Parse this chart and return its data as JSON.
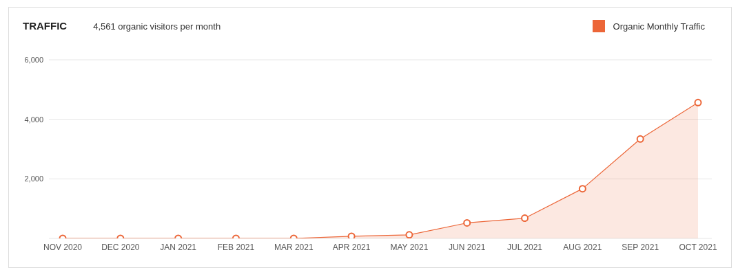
{
  "chart_data": {
    "type": "area",
    "title": "TRAFFIC",
    "subtitle": "4,561 organic visitors per month",
    "categories": [
      "NOV 2020",
      "DEC 2020",
      "JAN 2021",
      "FEB 2021",
      "MAR 2021",
      "APR 2021",
      "MAY 2021",
      "JUN 2021",
      "JUL 2021",
      "AUG 2021",
      "SEP 2021",
      "OCT 2021"
    ],
    "series": [
      {
        "name": "Organic Monthly Traffic",
        "color": "#ec6638",
        "values": [
          0,
          0,
          0,
          0,
          0,
          70,
          120,
          520,
          680,
          1670,
          3340,
          4561
        ]
      }
    ],
    "ylim": [
      0,
      6000
    ],
    "yticks": [
      {
        "value": 0,
        "label": null
      },
      {
        "value": 2000,
        "label": "2,000"
      },
      {
        "value": 4000,
        "label": "4,000"
      },
      {
        "value": 6000,
        "label": "6,000"
      }
    ],
    "grid": "y",
    "legend": "top right",
    "marker": "circle",
    "line_style": "solid"
  }
}
